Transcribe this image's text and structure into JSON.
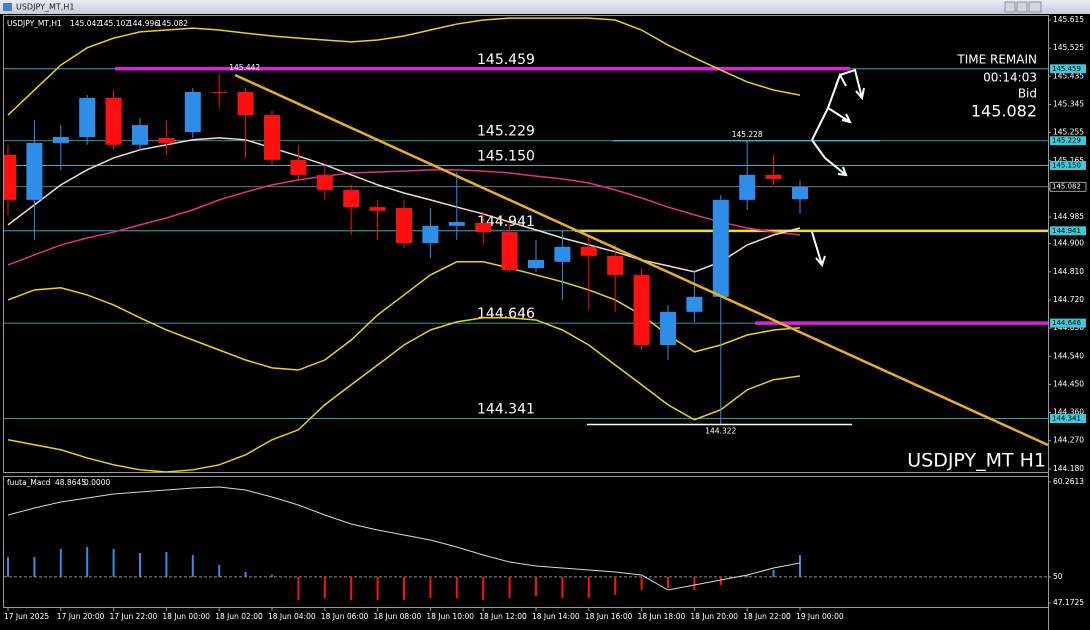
{
  "chart_data": {
    "type": "candlestick",
    "title": "USDJPY_MT,H1",
    "symbol_label": "USDJPY_MT H1",
    "categories": [
      "17 Jun 2025",
      null,
      "17 Jun 20:00",
      null,
      "17 Jun 22:00",
      null,
      "18 Jun 00:00",
      null,
      "18 Jun 02:00",
      null,
      "18 Jun 04:00",
      null,
      "18 Jun 06:00",
      null,
      "18 Jun 08:00",
      null,
      "18 Jun 10:00",
      null,
      "18 Jun 12:00",
      null,
      "18 Jun 14:00",
      null,
      "18 Jun 16:00",
      null,
      "18 Jun 18:00",
      null,
      "18 Jun 20:00",
      null,
      "18 Jun 22:00",
      null,
      "19 Jun 00:00"
    ],
    "open": [
      145.184,
      145.04,
      145.222,
      145.241,
      145.366,
      145.216,
      145.238,
      145.257,
      145.385,
      145.385,
      145.311,
      145.168,
      145.12,
      145.072,
      145.017,
      145.014,
      144.902,
      144.957,
      144.966,
      144.937,
      144.822,
      144.842,
      144.89,
      144.861,
      144.8,
      144.576,
      144.682,
      144.73,
      145.04,
      145.12,
      145.042
    ],
    "high": [
      145.216,
      145.295,
      145.279,
      145.375,
      145.391,
      145.302,
      145.295,
      145.398,
      145.442,
      145.398,
      145.327,
      145.216,
      145.152,
      145.088,
      145.04,
      145.04,
      145.014,
      145.129,
      145.001,
      144.96,
      144.912,
      144.944,
      144.928,
      144.896,
      144.822,
      144.704,
      144.816,
      145.056,
      145.228,
      145.184,
      145.102
    ],
    "low": [
      144.992,
      144.912,
      145.136,
      145.216,
      145.2,
      145.2,
      145.184,
      145.238,
      145.334,
      145.174,
      145.152,
      145.104,
      145.04,
      144.928,
      144.912,
      144.886,
      144.854,
      144.912,
      144.896,
      144.81,
      144.81,
      144.72,
      144.688,
      144.682,
      144.56,
      144.528,
      144.65,
      144.322,
      145.008,
      145.088,
      144.996
    ],
    "close": [
      145.04,
      145.222,
      145.241,
      145.366,
      145.216,
      145.279,
      145.222,
      145.385,
      145.383,
      145.311,
      145.168,
      145.12,
      145.072,
      145.017,
      145.005,
      144.902,
      144.957,
      144.969,
      144.937,
      144.816,
      144.848,
      144.89,
      144.861,
      144.8,
      144.576,
      144.682,
      144.73,
      145.04,
      145.12,
      145.107,
      145.082
    ],
    "up_color": "#2f8fe8",
    "down_color": "#ff1010",
    "ylim": [
      144.17,
      145.631
    ],
    "yticks": [
      145.615,
      145.525,
      145.435,
      145.345,
      145.255,
      145.165,
      145.075,
      144.985,
      {
        "value": 144.9,
        "label": "144.900"
      },
      {
        "value": 144.81,
        "label": "144.810"
      },
      {
        "value": 144.72,
        "label": "144.720"
      },
      {
        "value": 144.63,
        "label": "144.630"
      },
      {
        "value": 144.54,
        "label": "144.540"
      },
      {
        "value": 144.45,
        "label": "144.450"
      },
      {
        "value": 144.36,
        "label": "144.360"
      },
      {
        "value": 144.27,
        "label": "144.270"
      },
      {
        "value": 144.18,
        "label": "144.180"
      }
    ],
    "overlays": [
      {
        "color": "#e8d21c",
        "values": [
          145.311,
          145.391,
          145.471,
          145.526,
          145.557,
          145.577,
          145.583,
          145.589,
          145.583,
          145.573,
          145.564,
          145.557,
          145.551,
          145.545,
          145.551,
          145.564,
          145.583,
          145.602,
          145.615,
          145.621,
          145.621,
          145.621,
          145.621,
          145.615,
          145.583,
          145.535,
          145.494,
          145.455,
          145.417,
          145.391,
          145.375
        ]
      },
      {
        "color": "#e8d21c",
        "values": [
          144.273,
          144.257,
          144.241,
          144.215,
          144.193,
          144.177,
          144.17,
          144.177,
          144.193,
          144.225,
          144.273,
          144.305,
          144.385,
          144.449,
          144.512,
          144.576,
          144.624,
          144.65,
          144.663,
          144.663,
          144.656,
          144.624,
          144.576,
          144.512,
          144.449,
          144.385,
          144.337,
          144.369,
          144.433,
          144.465,
          144.477
        ]
      },
      {
        "color": "#e8d21c",
        "values": [
          144.72,
          144.752,
          144.759,
          144.736,
          144.704,
          144.663,
          144.624,
          144.592,
          144.56,
          144.528,
          144.503,
          144.496,
          144.528,
          144.592,
          144.672,
          144.736,
          144.8,
          144.842,
          144.842,
          144.822,
          144.8,
          144.778,
          144.752,
          144.72,
          144.672,
          144.608,
          144.554,
          144.576,
          144.608,
          144.624,
          144.631
        ]
      },
      {
        "color": "#e0308a",
        "values": [
          144.832,
          144.864,
          144.896,
          144.918,
          144.937,
          144.96,
          144.982,
          145.008,
          145.04,
          145.065,
          145.088,
          145.104,
          145.116,
          145.126,
          145.129,
          145.132,
          145.136,
          145.136,
          145.132,
          145.126,
          145.116,
          145.107,
          145.094,
          145.072,
          145.046,
          145.017,
          144.992,
          144.969,
          144.95,
          144.937,
          144.928
        ]
      },
      {
        "color": "#f0dcd0",
        "values": [
          144.96,
          145.024,
          145.088,
          145.136,
          145.174,
          145.2,
          145.216,
          145.232,
          145.238,
          145.232,
          145.206,
          145.18,
          145.152,
          145.12,
          145.088,
          145.062,
          145.04,
          145.017,
          144.995,
          144.969,
          144.944,
          144.918,
          144.896,
          144.874,
          144.848,
          144.829,
          144.81,
          144.842,
          144.896,
          144.928,
          144.95
        ]
      }
    ],
    "levels": [
      145.459,
      145.229,
      {
        "value": 145.15,
        "label": "145.150"
      },
      144.941,
      144.646,
      144.341
    ],
    "level_color": "#3fc8d8",
    "time_remain": {
      "title": "TIME REMAIN",
      "value": "00:14:03",
      "bid_label": "Bid"
    },
    "macd": {
      "name": "fuuta_Macd",
      "header_values": [
        48.8645,
        {
          "value": 0,
          "label": "0.0000"
        }
      ],
      "ylim": [
        47.1725,
        60.2613
      ],
      "yticks": [
        60.2613,
        50,
        47.1725
      ],
      "levels": [
        50
      ],
      "histogram": [
        52.148,
        52.148,
        53.014,
        53.23,
        53.014,
        52.581,
        52.689,
        52.365,
        51.283,
        50.526,
        50.201,
        47.497,
        47.713,
        47.497,
        47.497,
        47.497,
        47.713,
        47.713,
        47.497,
        47.713,
        47.93,
        47.713,
        47.713,
        48.038,
        48.579,
        48.795,
        48.579,
        49.119,
        50.201,
        50.742,
        52.365
      ],
      "signal": [
        56.692,
        57.449,
        58.098,
        58.531,
        58.964,
        59.18,
        59.396,
        59.612,
        59.72,
        59.396,
        58.639,
        57.773,
        56.692,
        55.718,
        55.069,
        54.528,
        53.987,
        53.23,
        52.365,
        51.608,
        51.175,
        50.959,
        50.742,
        50.526,
        50.201,
        48.579,
        49.119,
        49.66,
        50.201,
        50.959,
        51.499
      ],
      "signal_color": "#d8d8d8"
    }
  }
}
